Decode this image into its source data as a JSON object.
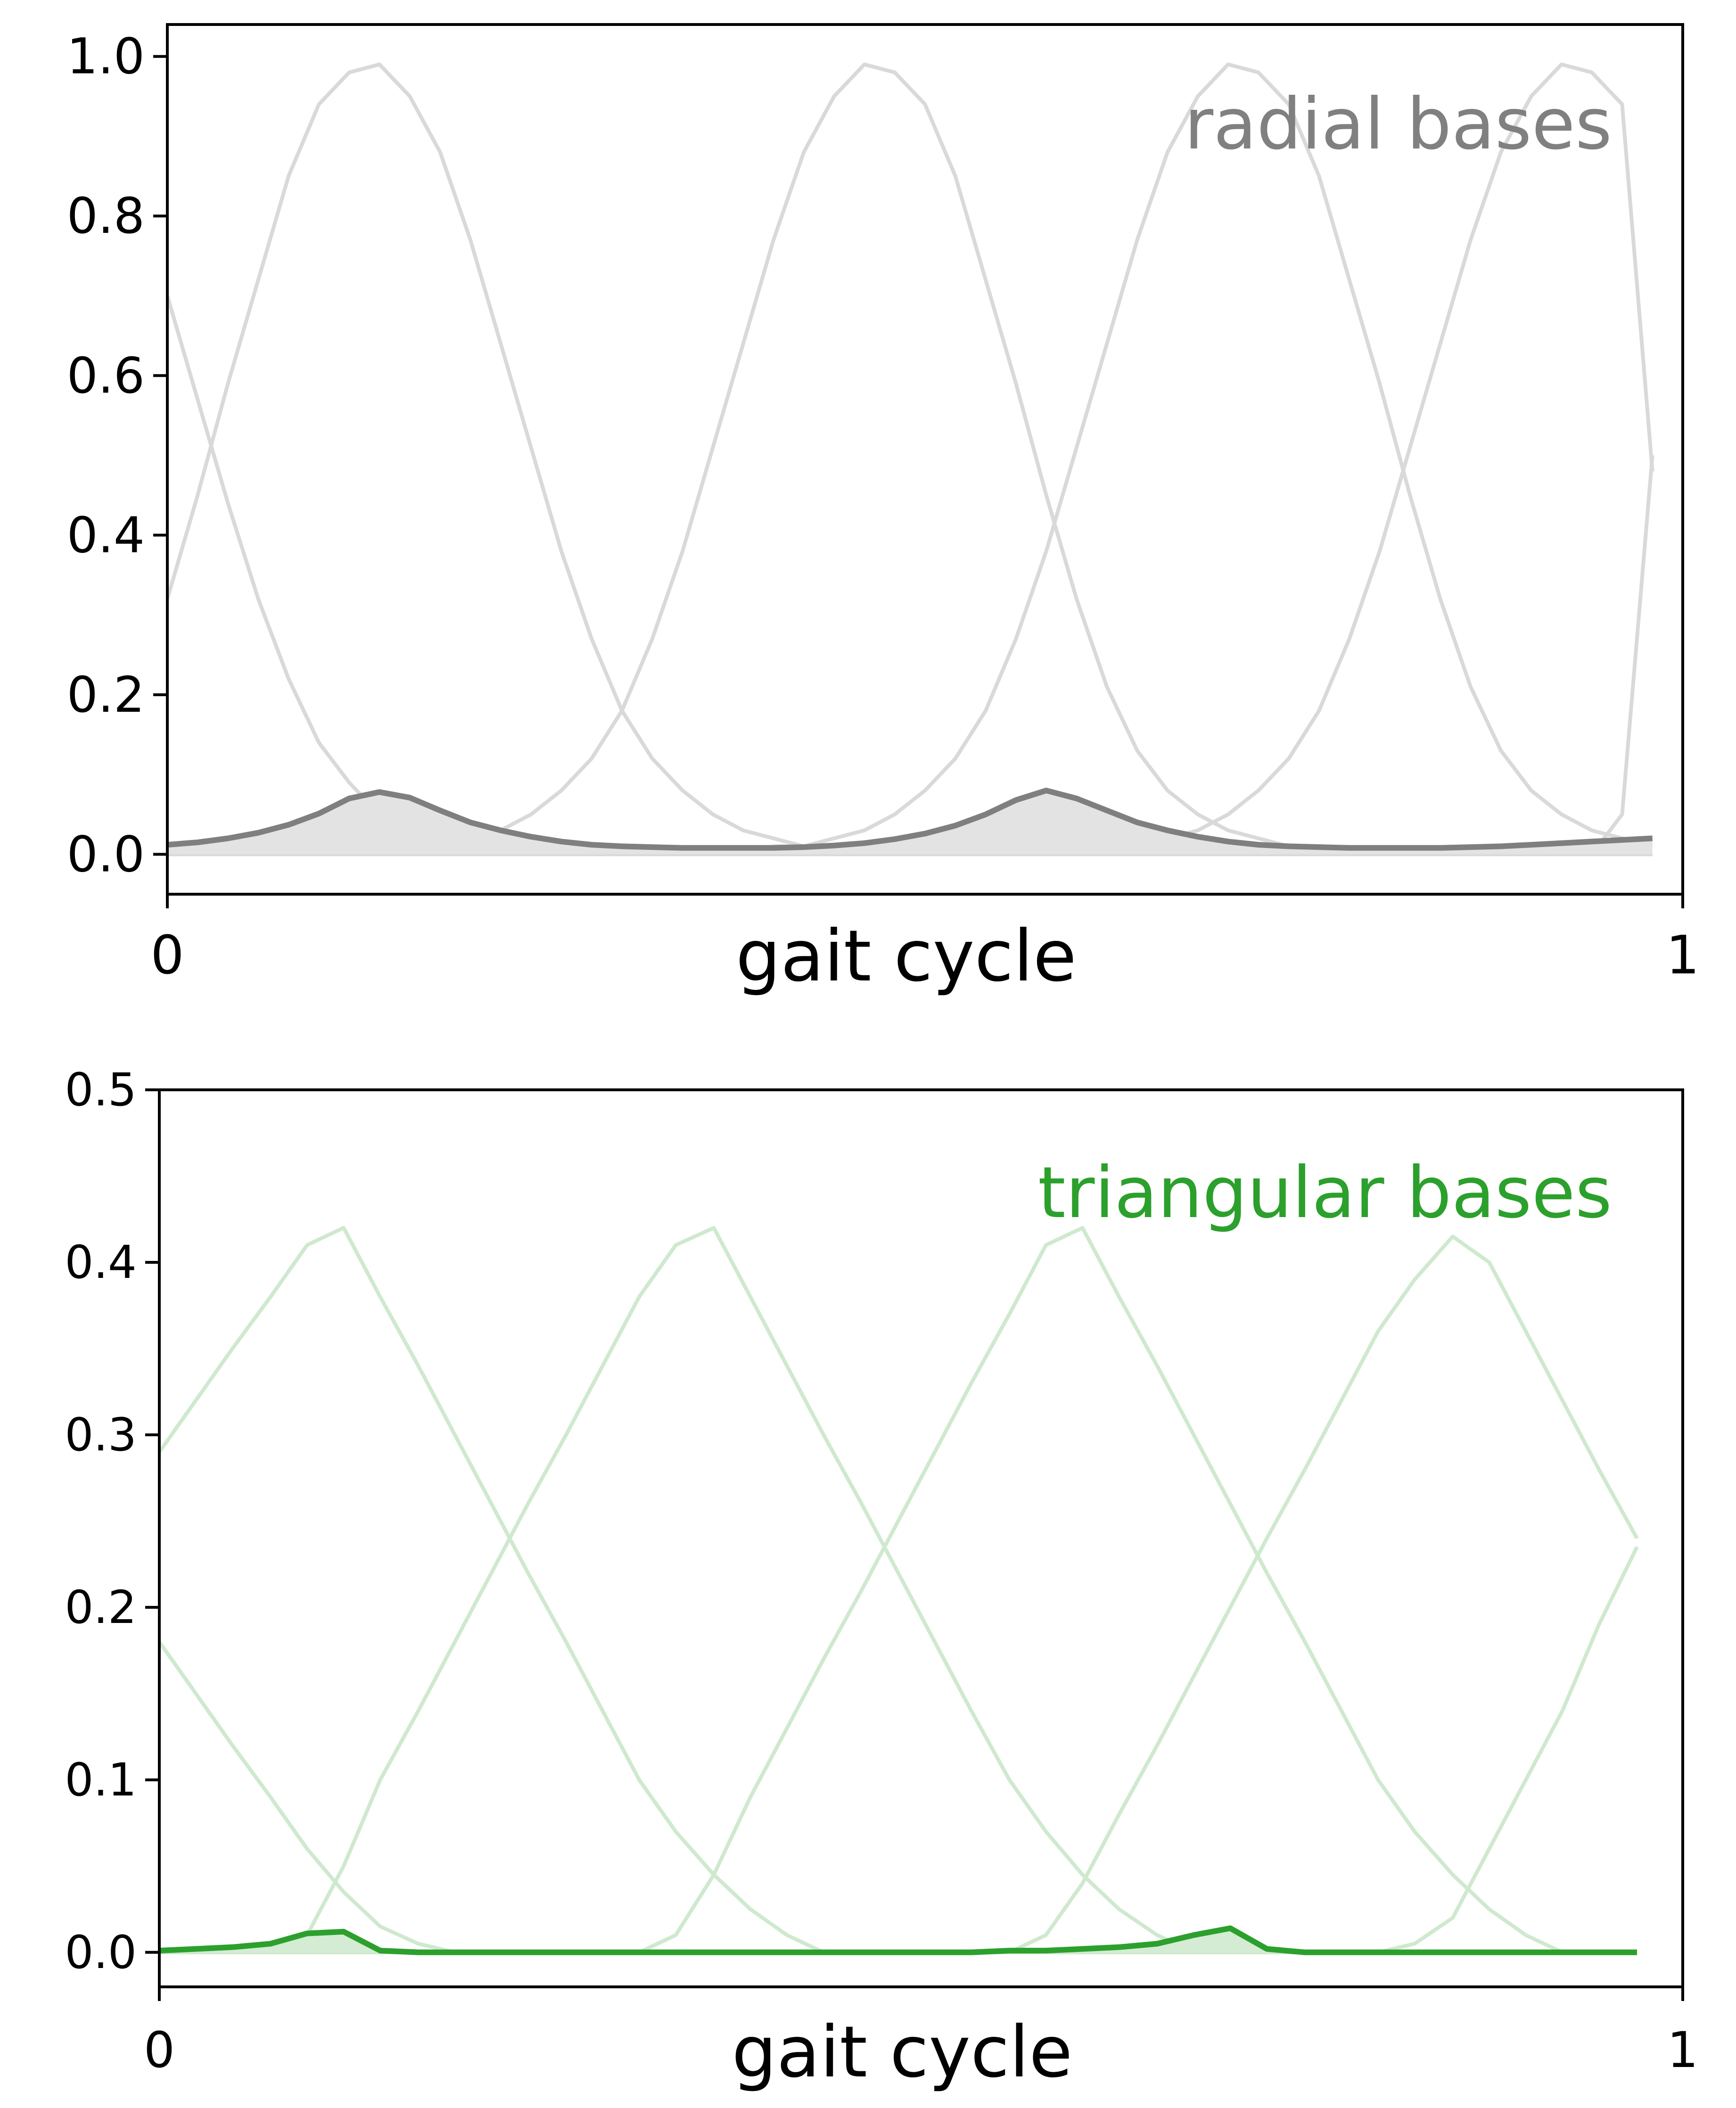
{
  "chart_data": [
    {
      "type": "line",
      "annotation": "radial bases",
      "xlabel": "gait cycle",
      "ylabel": "",
      "x_tick_labels": [
        "0",
        "1"
      ],
      "y_tick_labels": [
        "0.0",
        "0.2",
        "0.4",
        "0.6",
        "0.8",
        "1.0"
      ],
      "xlim": [
        0,
        1
      ],
      "ylim": [
        -0.05,
        1.04
      ],
      "colors": {
        "bases": "#d9d9d9",
        "combined": "#7f7f7f",
        "fill": "#e3e3e3",
        "annotation": "#808080"
      },
      "x": [
        0,
        0.02,
        0.04,
        0.06,
        0.08,
        0.1,
        0.12,
        0.14,
        0.16,
        0.18,
        0.2,
        0.22,
        0.24,
        0.26,
        0.28,
        0.3,
        0.32,
        0.34,
        0.36,
        0.38,
        0.4,
        0.42,
        0.44,
        0.46,
        0.48,
        0.5,
        0.52,
        0.54,
        0.56,
        0.58,
        0.6,
        0.62,
        0.64,
        0.66,
        0.68,
        0.7,
        0.72,
        0.74,
        0.76,
        0.78,
        0.8,
        0.82,
        0.84,
        0.86,
        0.88,
        0.9,
        0.92,
        0.94,
        0.96,
        0.98
      ],
      "bases": [
        [
          0.32,
          0.45,
          0.59,
          0.72,
          0.85,
          0.94,
          0.98,
          0.99,
          0.95,
          0.88,
          0.77,
          0.64,
          0.51,
          0.38,
          0.27,
          0.18,
          0.12,
          0.08,
          0.05,
          0.03,
          0.02,
          0.01,
          0.01,
          0.01,
          0.0,
          0.0,
          0.0,
          0.0,
          0.0,
          0.0,
          0.0,
          0.0,
          0.0,
          0.0,
          0.0,
          0.0,
          0.0,
          0.0,
          0.0,
          0.0,
          0.0,
          0.0,
          0.0,
          0.0,
          0.0,
          0.0,
          0.0,
          0.0,
          0.0,
          0.0
        ],
        [
          0.0,
          0.0,
          0.0,
          0.0,
          0.0,
          0.0,
          0.0,
          0.0,
          0.01,
          0.01,
          0.02,
          0.03,
          0.05,
          0.08,
          0.12,
          0.18,
          0.27,
          0.38,
          0.51,
          0.64,
          0.77,
          0.88,
          0.95,
          0.99,
          0.98,
          0.94,
          0.85,
          0.72,
          0.59,
          0.45,
          0.32,
          0.21,
          0.13,
          0.08,
          0.05,
          0.03,
          0.02,
          0.01,
          0.0,
          0.0,
          0.0,
          0.0,
          0.0,
          0.0,
          0.0,
          0.0,
          0.0,
          0.0,
          0.0,
          0.0
        ],
        [
          0.0,
          0.0,
          0.0,
          0.0,
          0.0,
          0.0,
          0.0,
          0.0,
          0.0,
          0.0,
          0.0,
          0.0,
          0.0,
          0.0,
          0.0,
          0.0,
          0.0,
          0.0,
          0.0,
          0.0,
          0.01,
          0.01,
          0.02,
          0.03,
          0.05,
          0.08,
          0.12,
          0.18,
          0.27,
          0.38,
          0.51,
          0.64,
          0.77,
          0.88,
          0.95,
          0.99,
          0.98,
          0.94,
          0.85,
          0.72,
          0.59,
          0.45,
          0.32,
          0.21,
          0.13,
          0.08,
          0.05,
          0.03,
          0.02,
          0.01
        ],
        [
          0.0,
          0.0,
          0.0,
          0.0,
          0.0,
          0.0,
          0.0,
          0.0,
          0.0,
          0.0,
          0.0,
          0.0,
          0.0,
          0.0,
          0.0,
          0.0,
          0.0,
          0.0,
          0.0,
          0.0,
          0.0,
          0.0,
          0.0,
          0.0,
          0.0,
          0.0,
          0.0,
          0.0,
          0.0,
          0.0,
          0.0,
          0.01,
          0.01,
          0.02,
          0.03,
          0.05,
          0.08,
          0.12,
          0.18,
          0.27,
          0.38,
          0.51,
          0.64,
          0.77,
          0.88,
          0.95,
          0.99,
          0.98,
          0.94,
          0.48
        ],
        [
          0.7,
          0.57,
          0.44,
          0.32,
          0.22,
          0.14,
          0.09,
          0.05,
          0.03,
          0.02,
          0.01,
          0.01,
          0.0,
          0.0,
          0.0,
          0.0,
          0.0,
          0.0,
          0.0,
          0.0,
          0.0,
          0.0,
          0.0,
          0.0,
          0.0,
          0.0,
          0.0,
          0.0,
          0.0,
          0.0,
          0.0,
          0.0,
          0.0,
          0.0,
          0.0,
          0.0,
          0.0,
          0.0,
          0.0,
          0.0,
          0.0,
          0.0,
          0.0,
          0.0,
          0.0,
          0.0,
          0.0,
          0.0,
          0.0,
          0.0
        ],
        [
          0.0,
          0.0,
          0.0,
          0.0,
          0.0,
          0.0,
          0.0,
          0.0,
          0.0,
          0.0,
          0.0,
          0.0,
          0.0,
          0.0,
          0.0,
          0.0,
          0.0,
          0.0,
          0.0,
          0.0,
          0.0,
          0.0,
          0.0,
          0.0,
          0.0,
          0.0,
          0.0,
          0.0,
          0.0,
          0.0,
          0.0,
          0.0,
          0.0,
          0.0,
          0.0,
          0.0,
          0.0,
          0.0,
          0.0,
          0.0,
          0.0,
          0.0,
          0.0,
          0.0,
          0.0,
          0.0,
          0.0,
          0.0,
          0.05,
          0.5
        ]
      ],
      "combined": [
        0.012,
        0.015,
        0.02,
        0.027,
        0.037,
        0.051,
        0.07,
        0.078,
        0.071,
        0.055,
        0.04,
        0.03,
        0.022,
        0.016,
        0.012,
        0.01,
        0.009,
        0.008,
        0.008,
        0.008,
        0.008,
        0.009,
        0.011,
        0.014,
        0.019,
        0.026,
        0.036,
        0.05,
        0.068,
        0.08,
        0.07,
        0.055,
        0.04,
        0.03,
        0.022,
        0.016,
        0.012,
        0.01,
        0.009,
        0.008,
        0.008,
        0.008,
        0.008,
        0.009,
        0.01,
        0.012,
        0.014,
        0.016,
        0.018,
        0.02
      ]
    },
    {
      "type": "line",
      "annotation": "triangular bases",
      "xlabel": "gait cycle",
      "ylabel": "",
      "x_tick_labels": [
        "0",
        "1"
      ],
      "y_tick_labels": [
        "0.0",
        "0.1",
        "0.2",
        "0.3",
        "0.4",
        "0.5"
      ],
      "xlim": [
        0,
        1
      ],
      "ylim": [
        -0.02,
        0.5
      ],
      "colors": {
        "bases": "#cfe9cf",
        "combined": "#2ca02c",
        "fill": "#d3ecd3",
        "annotation": "#2ca02c"
      },
      "x": [
        0,
        0.024,
        0.048,
        0.073,
        0.097,
        0.121,
        0.145,
        0.17,
        0.194,
        0.218,
        0.242,
        0.267,
        0.291,
        0.315,
        0.339,
        0.364,
        0.388,
        0.412,
        0.436,
        0.461,
        0.485,
        0.509,
        0.533,
        0.558,
        0.582,
        0.606,
        0.63,
        0.655,
        0.679,
        0.703,
        0.727,
        0.752,
        0.776,
        0.8,
        0.824,
        0.849,
        0.873,
        0.897,
        0.921,
        0.945,
        0.97
      ],
      "bases": [
        [
          0.29,
          0.32,
          0.35,
          0.38,
          0.41,
          0.42,
          0.38,
          0.34,
          0.3,
          0.26,
          0.22,
          0.18,
          0.14,
          0.1,
          0.07,
          0.045,
          0.025,
          0.01,
          0.0,
          0.0,
          0.0,
          0.0,
          0.0,
          0.0,
          0.0,
          0.0,
          0.0,
          0.0,
          0.0,
          0.0,
          0.0,
          0.0,
          0.0,
          0.0,
          0.0,
          0.0,
          0.0,
          0.0,
          0.0,
          0.0,
          0.0
        ],
        [
          0.0,
          0.0,
          0.0,
          0.0,
          0.01,
          0.05,
          0.1,
          0.14,
          0.18,
          0.22,
          0.26,
          0.3,
          0.34,
          0.38,
          0.41,
          0.42,
          0.38,
          0.34,
          0.3,
          0.26,
          0.22,
          0.18,
          0.14,
          0.1,
          0.07,
          0.045,
          0.025,
          0.01,
          0.0,
          0.0,
          0.0,
          0.0,
          0.0,
          0.0,
          0.0,
          0.0,
          0.0,
          0.0,
          0.0,
          0.0,
          0.0
        ],
        [
          0.0,
          0.0,
          0.0,
          0.0,
          0.0,
          0.0,
          0.0,
          0.0,
          0.0,
          0.0,
          0.0,
          0.0,
          0.0,
          0.0,
          0.01,
          0.045,
          0.09,
          0.13,
          0.17,
          0.21,
          0.25,
          0.29,
          0.33,
          0.37,
          0.41,
          0.42,
          0.38,
          0.34,
          0.3,
          0.26,
          0.22,
          0.18,
          0.14,
          0.1,
          0.07,
          0.045,
          0.025,
          0.01,
          0.0,
          0.0,
          0.0
        ],
        [
          0.0,
          0.0,
          0.0,
          0.0,
          0.0,
          0.0,
          0.0,
          0.0,
          0.0,
          0.0,
          0.0,
          0.0,
          0.0,
          0.0,
          0.0,
          0.0,
          0.0,
          0.0,
          0.0,
          0.0,
          0.0,
          0.0,
          0.0,
          0.0,
          0.01,
          0.04,
          0.08,
          0.12,
          0.16,
          0.2,
          0.24,
          0.28,
          0.32,
          0.36,
          0.39,
          0.415,
          0.4,
          0.36,
          0.32,
          0.28,
          0.24
        ],
        [
          0.18,
          0.15,
          0.12,
          0.09,
          0.06,
          0.035,
          0.015,
          0.005,
          0.0,
          0.0,
          0.0,
          0.0,
          0.0,
          0.0,
          0.0,
          0.0,
          0.0,
          0.0,
          0.0,
          0.0,
          0.0,
          0.0,
          0.0,
          0.0,
          0.0,
          0.0,
          0.0,
          0.0,
          0.0,
          0.0,
          0.0,
          0.0,
          0.0,
          0.0,
          0.0,
          0.0,
          0.0,
          0.0,
          0.0,
          0.0,
          0.0
        ],
        [
          0.0,
          0.0,
          0.0,
          0.0,
          0.0,
          0.0,
          0.0,
          0.0,
          0.0,
          0.0,
          0.0,
          0.0,
          0.0,
          0.0,
          0.0,
          0.0,
          0.0,
          0.0,
          0.0,
          0.0,
          0.0,
          0.0,
          0.0,
          0.0,
          0.0,
          0.0,
          0.0,
          0.0,
          0.0,
          0.0,
          0.0,
          0.0,
          0.0,
          0.0,
          0.005,
          0.02,
          0.06,
          0.1,
          0.14,
          0.19,
          0.235
        ]
      ],
      "combined": [
        0.001,
        0.002,
        0.003,
        0.005,
        0.011,
        0.012,
        0.001,
        0.0,
        0.0,
        0.0,
        0.0,
        0.0,
        0.0,
        0.0,
        0.0,
        0.0,
        0.0,
        0.0,
        0.0,
        0.0,
        0.0,
        0.0,
        0.0,
        0.001,
        0.001,
        0.002,
        0.003,
        0.005,
        0.01,
        0.014,
        0.002,
        0.0,
        0.0,
        0.0,
        0.0,
        0.0,
        0.0,
        0.0,
        0.0,
        0.0,
        0.0
      ]
    }
  ]
}
